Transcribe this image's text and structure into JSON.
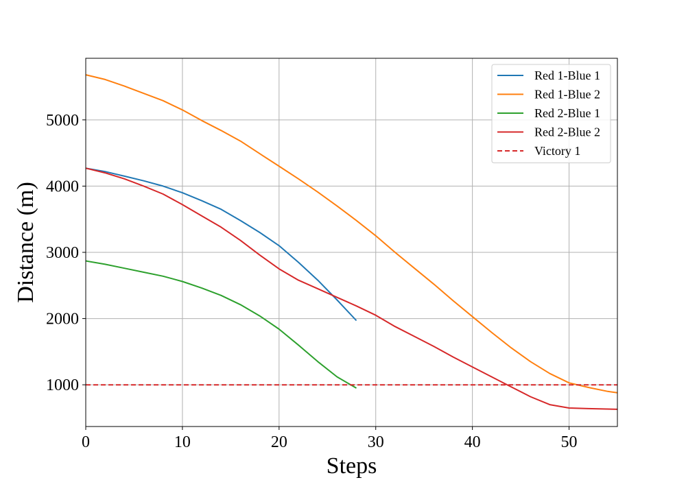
{
  "chart_data": {
    "type": "line",
    "title": "",
    "xlabel": "Steps",
    "ylabel": "Distance (m)",
    "xlim": [
      0,
      55
    ],
    "ylim": [
      370,
      5930
    ],
    "x_ticks": [
      0,
      10,
      20,
      30,
      40,
      50
    ],
    "y_ticks": [
      1000,
      2000,
      3000,
      4000,
      5000
    ],
    "grid": true,
    "legend_position": "top-right",
    "series": [
      {
        "name": "Red 1-Blue 1",
        "color": "#1f77b4",
        "style": "solid",
        "x": [
          0,
          2,
          4,
          6,
          8,
          10,
          12,
          14,
          16,
          18,
          20,
          22,
          24,
          26,
          28
        ],
        "y": [
          4270,
          4220,
          4150,
          4080,
          4000,
          3900,
          3780,
          3650,
          3480,
          3300,
          3100,
          2850,
          2580,
          2280,
          1970
        ]
      },
      {
        "name": "Red 1-Blue 2",
        "color": "#ff7f0e",
        "style": "solid",
        "x": [
          0,
          2,
          4,
          6,
          8,
          10,
          12,
          14,
          16,
          18,
          20,
          22,
          24,
          26,
          28,
          30,
          32,
          34,
          36,
          38,
          40,
          42,
          44,
          46,
          48,
          50,
          52,
          54,
          55
        ],
        "y": [
          5680,
          5610,
          5510,
          5400,
          5290,
          5150,
          4990,
          4840,
          4680,
          4490,
          4300,
          4110,
          3910,
          3700,
          3480,
          3250,
          3000,
          2760,
          2520,
          2270,
          2030,
          1790,
          1560,
          1350,
          1170,
          1030,
          960,
          900,
          880
        ]
      },
      {
        "name": "Red 2-Blue 1",
        "color": "#2ca02c",
        "style": "solid",
        "x": [
          0,
          2,
          4,
          6,
          8,
          10,
          12,
          14,
          16,
          18,
          20,
          22,
          24,
          26,
          28
        ],
        "y": [
          2870,
          2820,
          2760,
          2700,
          2640,
          2560,
          2460,
          2350,
          2210,
          2040,
          1840,
          1600,
          1350,
          1120,
          950
        ]
      },
      {
        "name": "Red 2-Blue 2",
        "color": "#d62728",
        "style": "solid",
        "x": [
          0,
          2,
          4,
          6,
          8,
          10,
          12,
          14,
          16,
          18,
          20,
          22,
          24,
          26,
          28,
          30,
          32,
          34,
          36,
          38,
          40,
          42,
          44,
          46,
          48,
          50,
          52,
          55
        ],
        "y": [
          4270,
          4200,
          4110,
          4000,
          3880,
          3720,
          3550,
          3380,
          3180,
          2960,
          2750,
          2580,
          2450,
          2320,
          2190,
          2050,
          1880,
          1730,
          1580,
          1420,
          1270,
          1120,
          970,
          820,
          700,
          650,
          640,
          630
        ]
      },
      {
        "name": "Victory 1",
        "color": "#d62728",
        "style": "dashed",
        "x": [
          0,
          55
        ],
        "y": [
          1000,
          1000
        ]
      }
    ]
  }
}
